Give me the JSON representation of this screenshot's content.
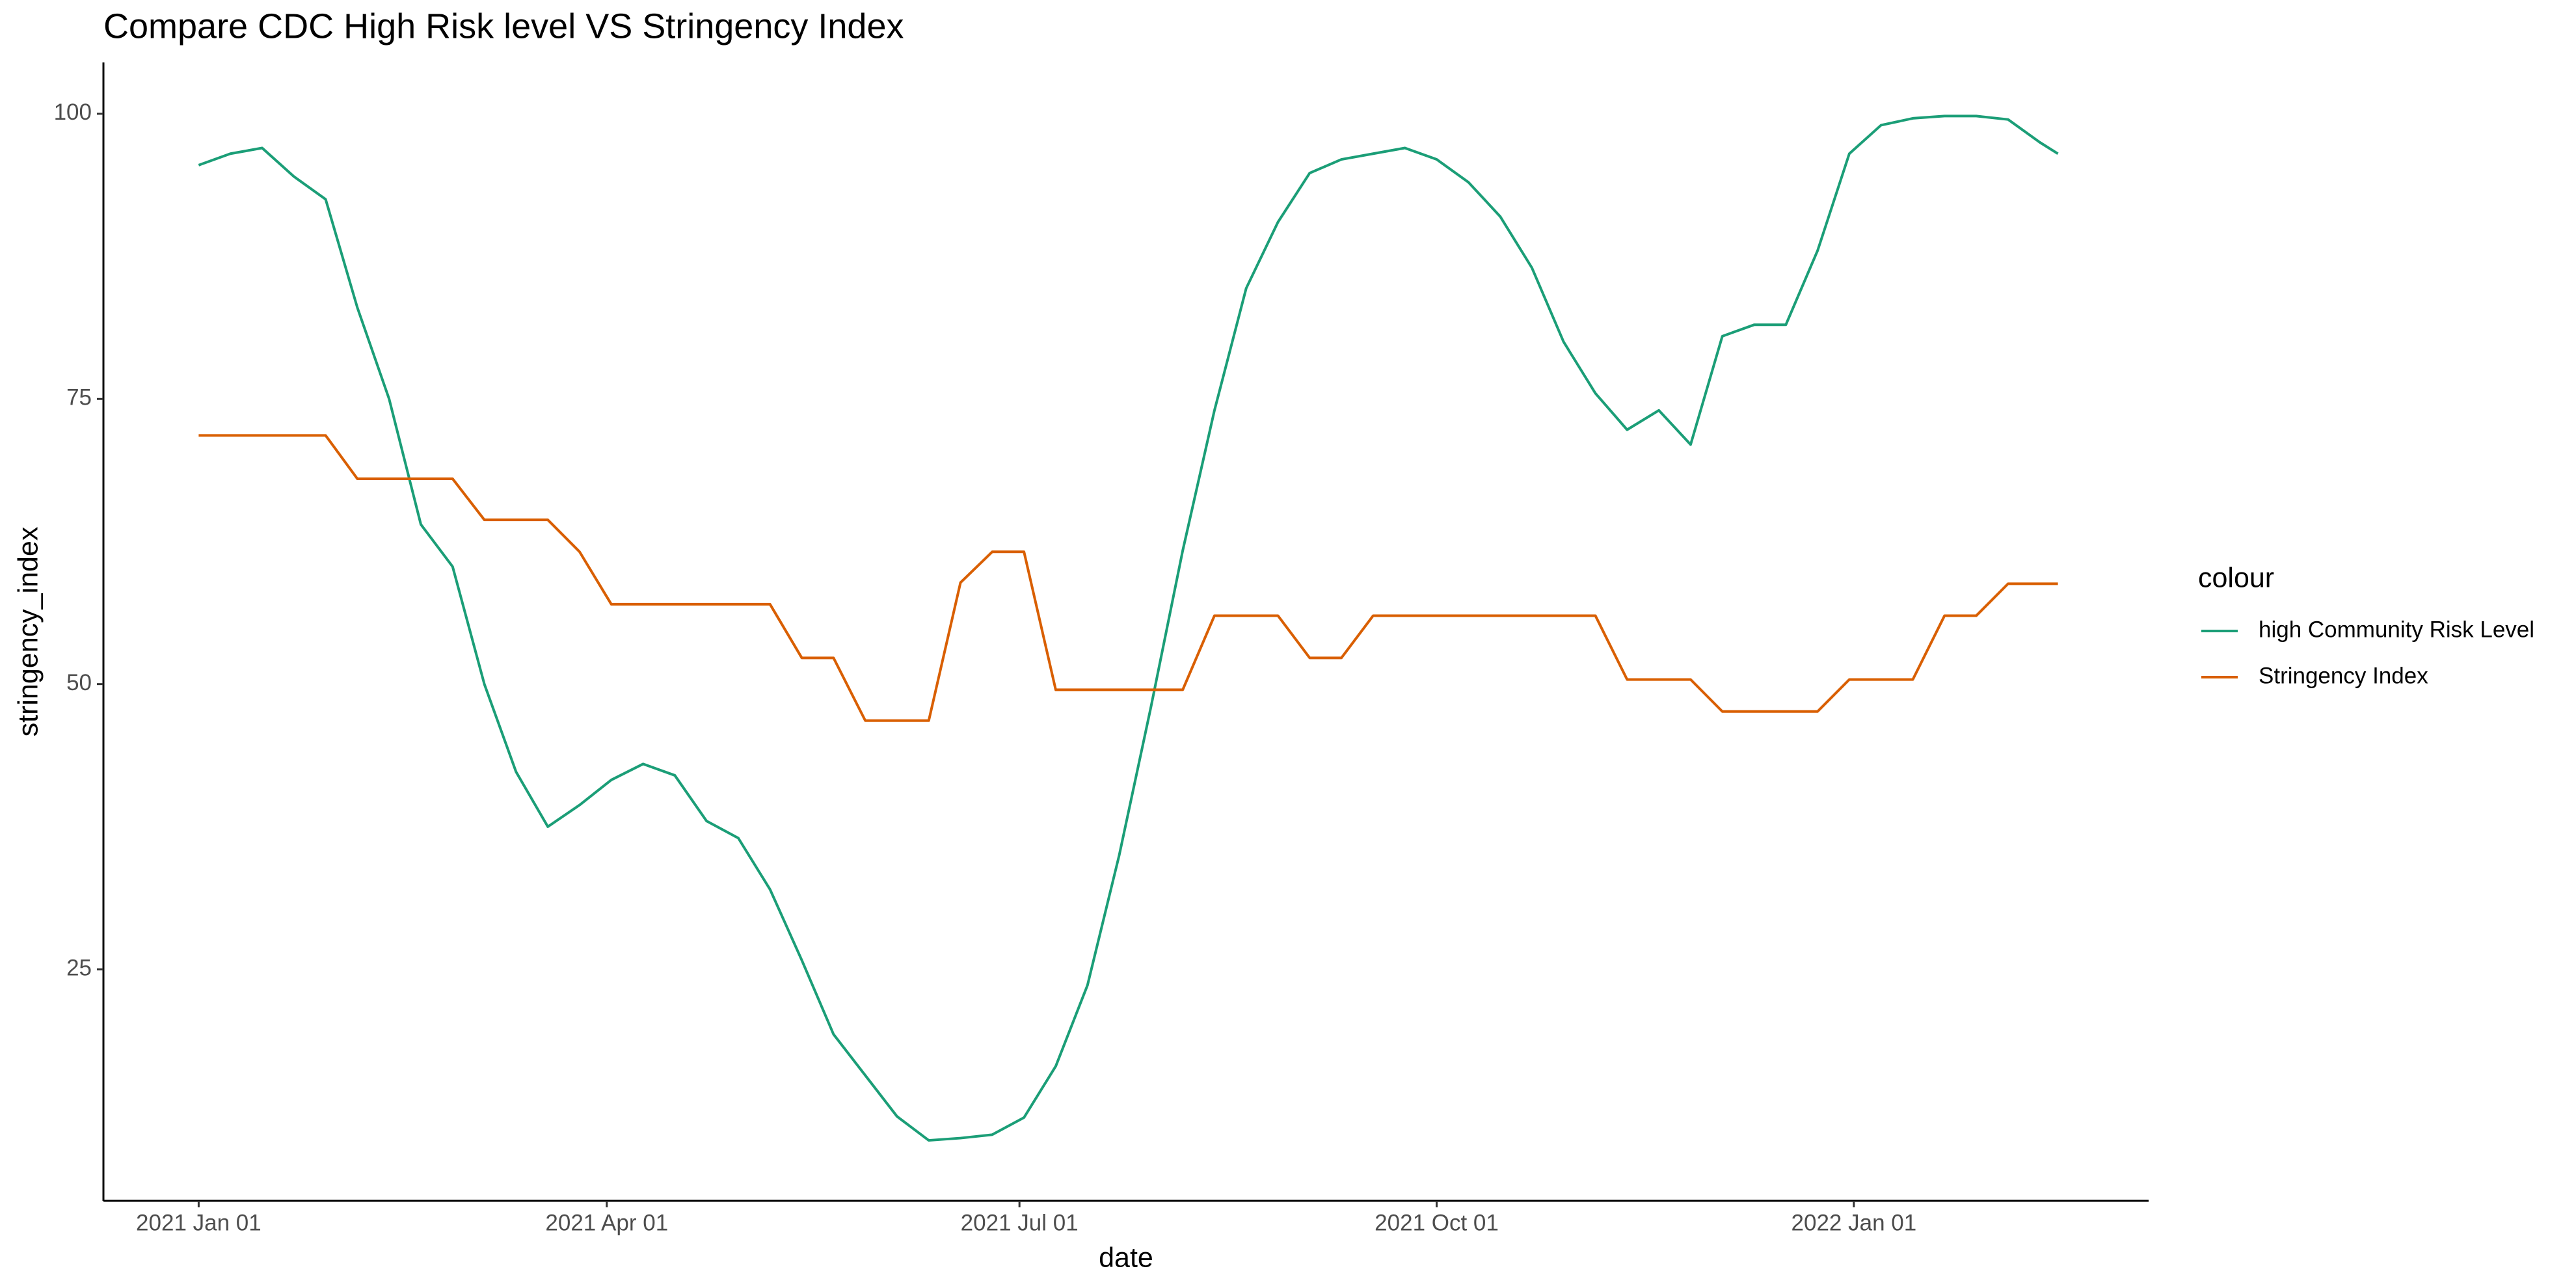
{
  "chart_data": {
    "type": "line",
    "title": "Compare CDC High Risk level VS Stringency Index",
    "x_label": "date",
    "y_label": "stringency_index",
    "legend_title": "colour",
    "legend_position": "right",
    "x": [
      "2021-01-01",
      "2021-01-08",
      "2021-01-15",
      "2021-01-22",
      "2021-01-29",
      "2021-02-05",
      "2021-02-12",
      "2021-02-19",
      "2021-02-26",
      "2021-03-05",
      "2021-03-12",
      "2021-03-19",
      "2021-03-26",
      "2021-04-02",
      "2021-04-09",
      "2021-04-16",
      "2021-04-23",
      "2021-04-30",
      "2021-05-07",
      "2021-05-14",
      "2021-05-21",
      "2021-05-28",
      "2021-06-04",
      "2021-06-11",
      "2021-06-18",
      "2021-06-25",
      "2021-07-02",
      "2021-07-09",
      "2021-07-16",
      "2021-07-23",
      "2021-07-30",
      "2021-08-06",
      "2021-08-13",
      "2021-08-20",
      "2021-08-27",
      "2021-09-03",
      "2021-09-10",
      "2021-09-17",
      "2021-09-24",
      "2021-10-01",
      "2021-10-08",
      "2021-10-15",
      "2021-10-22",
      "2021-10-29",
      "2021-11-05",
      "2021-11-12",
      "2021-11-19",
      "2021-11-26",
      "2021-12-03",
      "2021-12-10",
      "2021-12-17",
      "2021-12-24",
      "2021-12-31",
      "2022-01-07",
      "2022-01-14",
      "2022-01-21",
      "2022-01-28",
      "2022-02-04",
      "2022-02-11",
      "2022-02-15"
    ],
    "series": [
      {
        "name": "high Community Risk Level",
        "color": "#1b9e77",
        "values": [
          95.5,
          96.5,
          97,
          94.5,
          92.5,
          83,
          75,
          64,
          60.3,
          50,
          42.3,
          37.5,
          39.4,
          41.6,
          43,
          42,
          38,
          36.5,
          32,
          25.8,
          19.3,
          15.7,
          12.1,
          10,
          10.2,
          10.5,
          12,
          16.5,
          23.6,
          35,
          48,
          61.7,
          74,
          84.7,
          90.5,
          94.8,
          96,
          96.5,
          97,
          96,
          94,
          91,
          86.5,
          80,
          75.5,
          72.3,
          74,
          71,
          80.5,
          81.5,
          81.5,
          88,
          96.5,
          99,
          99.6,
          99.8,
          99.8,
          99.5,
          97.5,
          96.5
        ]
      },
      {
        "name": "Stringency Index",
        "color": "#d95f02",
        "values": [
          71.8,
          71.8,
          71.8,
          71.8,
          71.8,
          68,
          68,
          68,
          68,
          64.4,
          64.4,
          64.4,
          61.6,
          57,
          57,
          57,
          57,
          57,
          57,
          52.3,
          52.3,
          46.8,
          46.8,
          46.8,
          58.9,
          61.6,
          61.6,
          49.5,
          49.5,
          49.5,
          49.5,
          49.5,
          56,
          56,
          56,
          52.3,
          52.3,
          56,
          56,
          56,
          56,
          56,
          56,
          56,
          56,
          50.4,
          50.4,
          50.4,
          47.6,
          47.6,
          47.6,
          47.6,
          50.4,
          50.4,
          50.4,
          56,
          56,
          58.8,
          58.8,
          58.8
        ]
      }
    ],
    "xlim": [
      "2020-12-11",
      "2022-03-07"
    ],
    "xticks": [
      {
        "value": "2021-01-01",
        "label": "2021 Jan 01"
      },
      {
        "value": "2021-04-01",
        "label": "2021 Apr 01"
      },
      {
        "value": "2021-07-01",
        "label": "2021 Jul 01"
      },
      {
        "value": "2021-10-01",
        "label": "2021 Oct 01"
      },
      {
        "value": "2022-01-01",
        "label": "2022 Jan 01"
      }
    ],
    "ylim": [
      4.7,
      104.5
    ],
    "yticks": [
      25,
      50,
      75,
      100
    ],
    "grid": false
  }
}
